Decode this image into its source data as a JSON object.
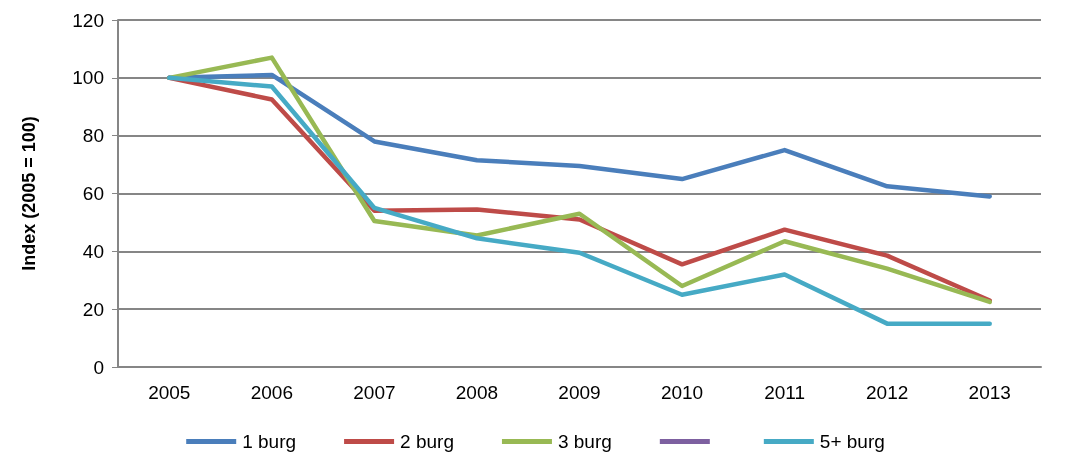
{
  "chart_data": {
    "type": "line",
    "ylabel": "Index (2005 = 100)",
    "categories": [
      "2005",
      "2006",
      "2007",
      "2008",
      "2009",
      "2010",
      "2011",
      "2012",
      "2013"
    ],
    "series": [
      {
        "name": "1 burg",
        "color": "#4a7ebb",
        "values": [
          100,
          101,
          78,
          71.5,
          69.5,
          65,
          75,
          62.5,
          59
        ]
      },
      {
        "name": "2 burg",
        "color": "#be4b48",
        "values": [
          100,
          92.5,
          54,
          54.5,
          51,
          35.5,
          47.5,
          38.5,
          23
        ]
      },
      {
        "name": "3 burg",
        "color": "#98b954",
        "values": [
          100,
          107,
          50.5,
          45.5,
          53,
          28,
          43.5,
          34,
          22.5
        ]
      },
      {
        "color": "#7d60a0",
        "values": [
          null,
          null,
          null,
          null,
          null,
          null,
          null,
          null,
          null
        ]
      },
      {
        "name": "5+ burg",
        "color": "#46aac5",
        "values": [
          100,
          97,
          55,
          44.5,
          39.5,
          25,
          32,
          15,
          15
        ]
      }
    ],
    "ylim": [
      0,
      120
    ],
    "yticks": [
      0,
      20,
      40,
      60,
      80,
      100,
      120
    ],
    "grid": "y",
    "legend": "bottom",
    "marker": "none",
    "line_style": "solid"
  }
}
